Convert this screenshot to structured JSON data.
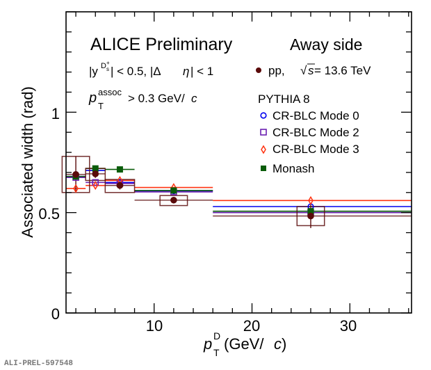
{
  "chart_data": {
    "type": "scatter",
    "title": "",
    "xlabel": "p_T^D (GeV/c)",
    "xlabel_parts": {
      "main": "p",
      "sub": "T",
      "sup": "D",
      "rest": " (GeV/",
      "italic_c": "c",
      "close": ")"
    },
    "ylabel": "Associated width (rad)",
    "xlim": [
      1,
      36.3
    ],
    "ylim": [
      0,
      1.5
    ],
    "x_ticks": [
      10,
      20,
      30
    ],
    "x_tick_labels": [
      "10",
      "20",
      "30"
    ],
    "y_ticks": [
      0,
      0.5,
      1
    ],
    "y_tick_labels": [
      "0",
      "0.5",
      "1"
    ],
    "x_minor_step": 2,
    "y_minor_step": 0.1,
    "grid": false,
    "bins": [
      [
        1,
        3
      ],
      [
        3,
        5
      ],
      [
        5,
        8
      ],
      [
        8,
        16
      ],
      [
        16,
        36
      ]
    ],
    "data": {
      "name": "pp, √s = 13.6 TeV",
      "color": "#5a0a0a",
      "x": [
        2,
        4,
        6.5,
        12,
        26
      ],
      "y": [
        0.69,
        0.693,
        0.635,
        0.562,
        0.483
      ],
      "stat_err": [
        0.09,
        0.02,
        0.02,
        0.012,
        0.06
      ],
      "sys_low": [
        0.6,
        0.66,
        0.6,
        0.535,
        0.435
      ],
      "sys_high": [
        0.78,
        0.72,
        0.665,
        0.585,
        0.53
      ],
      "sys_box_halfwidth": [
        1.4,
        1.0,
        1.5,
        1.4,
        1.4
      ]
    },
    "series": [
      {
        "name": "CR-BLC Mode 0",
        "color": "#0000ee",
        "marker": "open-circle",
        "x": [
          2,
          4,
          6.5,
          12,
          26
        ],
        "y": [
          0.68,
          0.71,
          0.65,
          0.608,
          0.53
        ]
      },
      {
        "name": "CR-BLC Mode 2",
        "color": "#6a1fb0",
        "marker": "open-square",
        "x": [
          2,
          4,
          6.5,
          12,
          26
        ],
        "y": [
          0.675,
          0.65,
          0.645,
          0.603,
          0.5
        ]
      },
      {
        "name": "CR-BLC Mode 3",
        "color": "#ff3311",
        "marker": "open-diamond",
        "x": [
          2,
          4,
          6.5,
          12,
          26
        ],
        "y": [
          0.62,
          0.635,
          0.66,
          0.625,
          0.56
        ]
      },
      {
        "name": "Monash",
        "color": "#0a5c0a",
        "marker": "filled-square",
        "x": [
          2,
          4,
          6.5,
          12,
          26
        ],
        "y": [
          0.68,
          0.72,
          0.715,
          0.61,
          0.507
        ]
      }
    ],
    "annotations": {
      "experiment": "ALICE Preliminary",
      "cut1_prefix": "|y",
      "cut1_sup": "D",
      "cut1_supsup": "s",
      "cut1_supplus": "+",
      "cut1_rest": "| < 0.5, |Δ",
      "cut1_eta": "η",
      "cut1_end": "| < 1",
      "cut2_p": "p",
      "cut2_sup": "assoc",
      "cut2_sub": "T",
      "cut2_rest": " > 0.3 GeV/",
      "cut2_c": "c",
      "region": "Away side"
    },
    "legend": {
      "placement": "top-right",
      "data_label_pp": "pp,",
      "data_label_sqrt": "√",
      "data_label_s": "s",
      "data_label_energy": " = 13.6 TeV",
      "model_header": "PYTHIA 8",
      "entries": [
        "CR-BLC Mode 0",
        "CR-BLC Mode 2",
        "CR-BLC Mode 3",
        "Monash"
      ]
    },
    "figure_id": "ALI-PREL-597548"
  }
}
